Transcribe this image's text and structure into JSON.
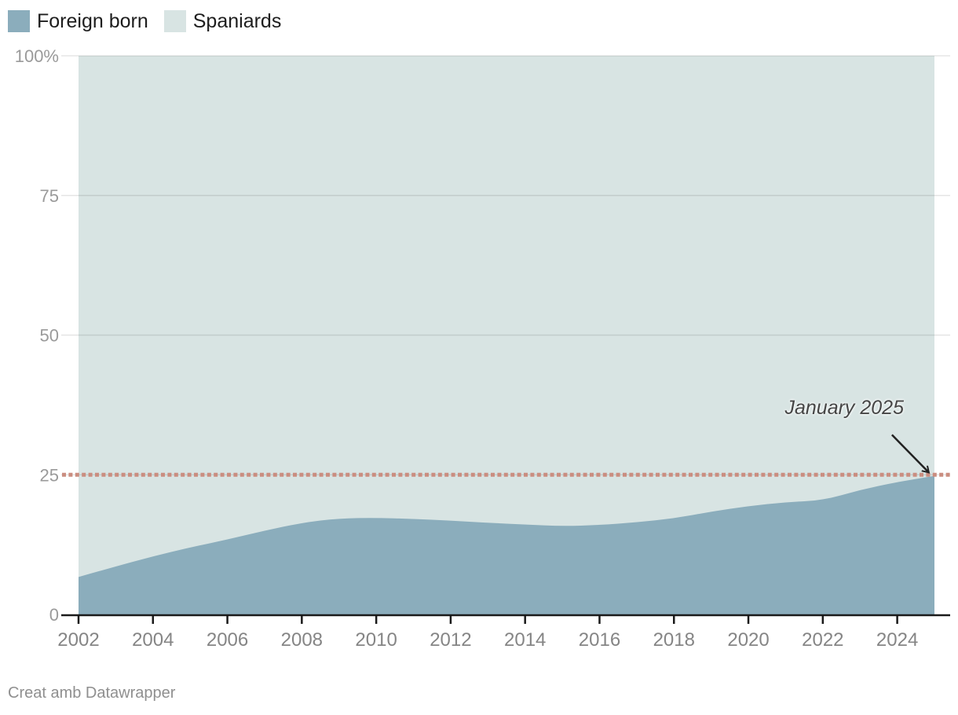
{
  "legend": {
    "items": [
      {
        "label": "Foreign born",
        "color": "#8badbc"
      },
      {
        "label": "Spaniards",
        "color": "#d8e4e3"
      }
    ]
  },
  "annotation": {
    "text": "January 2025"
  },
  "footer": {
    "text": "Creat amb Datawrapper"
  },
  "colors": {
    "foreign_born_area": "#8badbc",
    "spaniards_area": "#d8e4e3",
    "reference_line": "#ca8d80",
    "axis": "#1a1a1a",
    "y_tick_label": "#9a9a9a",
    "x_tick_label": "#858585",
    "gridline": "rgba(0,0,0,0.10)",
    "arrow": "#222222"
  },
  "chart_data": {
    "type": "area",
    "stacked": "percent",
    "title": "",
    "xlabel": "",
    "ylabel": "",
    "xlim": [
      2002,
      2025
    ],
    "ylim": [
      0,
      100
    ],
    "grid": true,
    "legend_position": "top-left",
    "x": [
      2002,
      2003,
      2004,
      2005,
      2006,
      2007,
      2008,
      2009,
      2010,
      2011,
      2012,
      2013,
      2014,
      2015,
      2016,
      2017,
      2018,
      2019,
      2020,
      2021,
      2022,
      2023,
      2024,
      2025
    ],
    "series": [
      {
        "name": "Foreign born",
        "values": [
          6.7,
          8.6,
          10.4,
          12.0,
          13.4,
          15.0,
          16.4,
          17.2,
          17.3,
          17.1,
          16.8,
          16.4,
          16.1,
          15.8,
          16.0,
          16.5,
          17.2,
          18.4,
          19.4,
          20.1,
          20.4,
          22.3,
          23.7,
          24.8
        ]
      },
      {
        "name": "Spaniards",
        "values": [
          93.3,
          91.4,
          89.6,
          88.0,
          86.6,
          85.0,
          83.6,
          82.8,
          82.7,
          82.9,
          83.2,
          83.6,
          83.9,
          84.2,
          84.0,
          83.5,
          82.8,
          81.6,
          80.6,
          79.9,
          79.6,
          77.7,
          76.3,
          75.2
        ]
      }
    ],
    "y_ticks": [
      {
        "value": 0,
        "label": "0"
      },
      {
        "value": 25,
        "label": "25"
      },
      {
        "value": 50,
        "label": "50"
      },
      {
        "value": 75,
        "label": "75"
      },
      {
        "value": 100,
        "label": "100%"
      }
    ],
    "x_ticks": [
      2002,
      2004,
      2006,
      2008,
      2010,
      2012,
      2014,
      2016,
      2018,
      2020,
      2022,
      2024
    ],
    "reference_line": {
      "value": 25,
      "style": "dotted"
    },
    "annotation": {
      "text": "January 2025",
      "arrow_to": {
        "x": 2024.85,
        "y": 25.4
      }
    }
  }
}
